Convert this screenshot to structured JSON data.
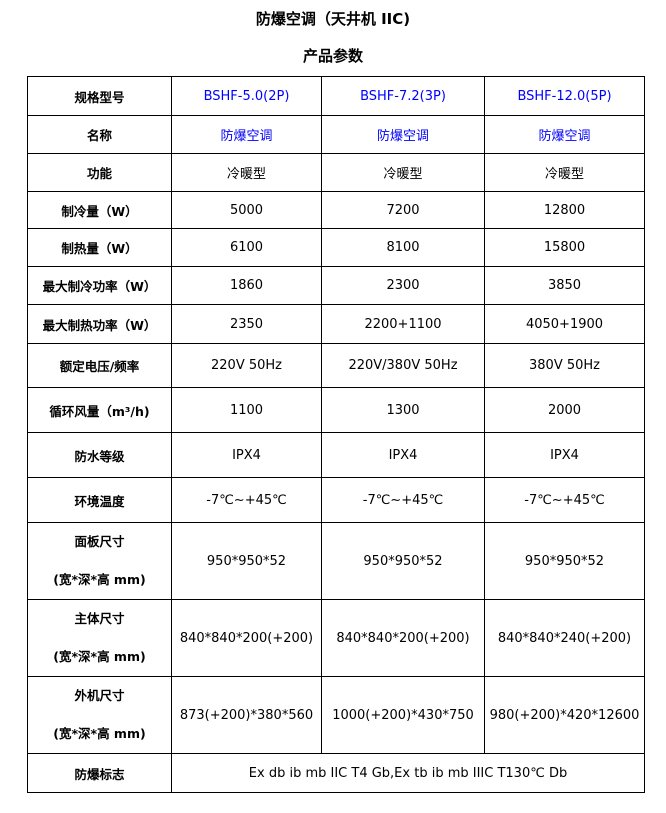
{
  "title": "防爆空调（天井机 IIC)",
  "subtitle": "产品参数",
  "colors": {
    "model_text": "#0000ff",
    "border": "#000000"
  },
  "rows": [
    {
      "label": "规格型号",
      "values": [
        "BSHF-5.0(2P)",
        "BSHF-7.2(3P)",
        "BSHF-12.0(5P)"
      ]
    },
    {
      "label": "名称",
      "values": [
        "防爆空调",
        "防爆空调",
        "防爆空调"
      ]
    },
    {
      "label": "功能",
      "values": [
        "冷暖型",
        "冷暖型",
        "冷暖型"
      ]
    },
    {
      "label": "制冷量（W）",
      "values": [
        "5000",
        "7200",
        "12800"
      ]
    },
    {
      "label": "制热量（W）",
      "values": [
        "6100",
        "8100",
        "15800"
      ]
    },
    {
      "label": "最大制冷功率（W）",
      "values": [
        "1860",
        "2300",
        "3850"
      ]
    },
    {
      "label": "最大制热功率（W）",
      "values": [
        "2350",
        "2200+1100",
        "4050+1900"
      ]
    },
    {
      "label": "额定电压/频率",
      "values": [
        "220V 50Hz",
        "220V/380V 50Hz",
        "380V   50Hz"
      ]
    },
    {
      "label": "循环风量（m³/h)",
      "values": [
        "1100",
        "1300",
        "2000"
      ]
    },
    {
      "label": "防水等级",
      "values": [
        "IPX4",
        "IPX4",
        "IPX4"
      ]
    },
    {
      "label": "环境温度",
      "values": [
        "-7℃~+45℃",
        "-7℃~+45℃",
        "-7℃~+45℃"
      ]
    },
    {
      "label": "面板尺寸",
      "label2": "(宽*深*高 mm)",
      "values": [
        "950*950*52",
        "950*950*52",
        "950*950*52"
      ]
    },
    {
      "label": "主体尺寸",
      "label2": "(宽*深*高 mm)",
      "values": [
        "840*840*200(+200)",
        "840*840*200(+200)",
        "840*840*240(+200)"
      ]
    },
    {
      "label": "外机尺寸",
      "label2": "(宽*深*高 mm)",
      "values": [
        "873(+200)*380*560",
        "1000(+200)*430*750",
        "980(+200)*420*12600"
      ]
    }
  ],
  "explosion_mark": {
    "label": "防爆标志",
    "value": "Ex db ib mb IIC T4 Gb,Ex tb ib mb IIIC T130℃  Db"
  }
}
